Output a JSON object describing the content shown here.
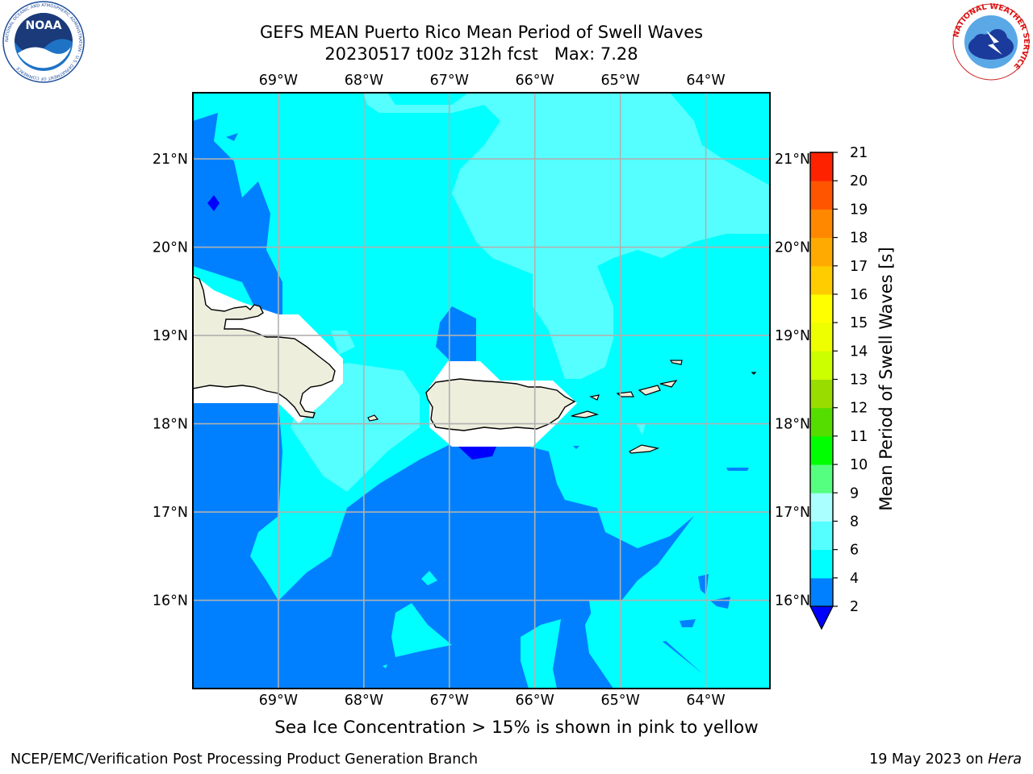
{
  "header": {
    "title_line1": "GEFS MEAN Puerto Rico Mean Period of Swell Waves",
    "title_line2": "20230517 t00z 312h fcst   Max: 7.28"
  },
  "logos": {
    "left": {
      "name": "noaa-logo",
      "text": "NOAA",
      "ring_text": "NATIONAL OCEANIC AND ATMOSPHERIC ADMINISTRATION · U.S. DEPARTMENT OF COMMERCE"
    },
    "right": {
      "name": "nws-logo",
      "ring_text": "NATIONAL WEATHER SERVICE"
    }
  },
  "map": {
    "lon_labels": [
      "69°W",
      "68°W",
      "67°W",
      "66°W",
      "65°W",
      "64°W"
    ],
    "lat_labels": [
      "21°N",
      "20°N",
      "19°N",
      "18°N",
      "17°N",
      "16°N"
    ],
    "lon_range": [
      -70.0,
      -63.25
    ],
    "lat_range": [
      15.0,
      21.75
    ],
    "grid": true,
    "land_color": "#eeeedd",
    "features": [
      "Hispaniola (east)",
      "Puerto Rico",
      "Virgin Islands"
    ]
  },
  "colorbar": {
    "label": "Mean Period of Swell Waves [s]",
    "ticks": [
      "2",
      "4",
      "6",
      "8",
      "9",
      "10",
      "11",
      "12",
      "13",
      "14",
      "15",
      "16",
      "17",
      "18",
      "19",
      "20",
      "21"
    ],
    "colors": [
      "#0080ff",
      "#00ffff",
      "#55ffff",
      "#aaffff",
      "#55ff80",
      "#00ff00",
      "#55dd00",
      "#99dd00",
      "#ccff00",
      "#eeff00",
      "#ffff00",
      "#ffcc00",
      "#ffaa00",
      "#ff8800",
      "#ff5500",
      "#ff2200"
    ],
    "under_color": "#0000ff",
    "extend": "min"
  },
  "footer": {
    "sea_ice_note": "Sea Ice Concentration > 15% is shown in pink to yellow",
    "branch": "NCEP/EMC/Verification Post Processing Product Generation Branch",
    "date_prefix": "19 May 2023 on ",
    "date_machine": "Hera"
  }
}
